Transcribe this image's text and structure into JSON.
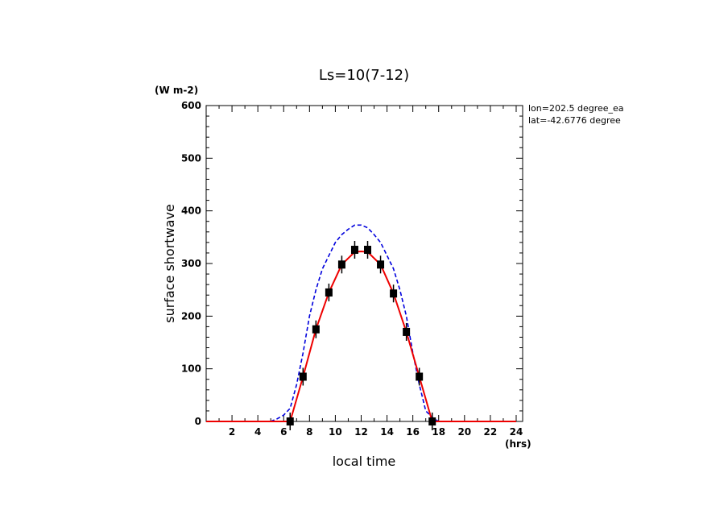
{
  "chart_data": {
    "type": "line",
    "title": "Ls=10(7-12)",
    "ylabel": "surface shortwave",
    "yunit": "(W m-2)",
    "xlabel": "local time",
    "xunit": "(hrs)",
    "annotations": [
      "lon=202.5 degree_ea",
      "lat=-42.6776 degree"
    ],
    "xlim": [
      0,
      24.5
    ],
    "ylim": [
      0,
      600
    ],
    "x_ticks": [
      2,
      4,
      6,
      8,
      10,
      12,
      14,
      16,
      18,
      20,
      22,
      24
    ],
    "y_ticks": [
      0,
      100,
      200,
      300,
      400,
      500,
      600
    ],
    "grid": false,
    "series": [
      {
        "style": "dashed",
        "color": "#0000dd",
        "x": [
          0,
          1,
          2,
          3,
          4,
          5,
          5.5,
          6,
          6.5,
          7,
          7.5,
          8,
          8.5,
          9,
          9.5,
          10,
          10.5,
          11,
          11.5,
          12,
          12.5,
          13,
          13.5,
          14,
          14.5,
          15,
          15.5,
          16,
          16.5,
          17,
          17.5,
          18,
          19,
          20,
          21,
          22,
          23,
          24
        ],
        "y": [
          0,
          0,
          0,
          0,
          0,
          0,
          5,
          12,
          25,
          70,
          130,
          200,
          250,
          290,
          315,
          340,
          355,
          365,
          373,
          373,
          368,
          355,
          340,
          315,
          290,
          250,
          200,
          130,
          70,
          20,
          8,
          0,
          0,
          0,
          0,
          0,
          0,
          0
        ]
      },
      {
        "style": "solid",
        "color": "#ee0000",
        "x": [
          0,
          1,
          2,
          3,
          4,
          5,
          6,
          6.5,
          7.5,
          8.5,
          9.5,
          10.5,
          11.5,
          12,
          12.5,
          13.5,
          14.5,
          15.5,
          16.5,
          17.5,
          18,
          19,
          20,
          21,
          22,
          23,
          24
        ],
        "y": [
          0,
          0,
          0,
          0,
          0,
          0,
          0,
          0,
          85,
          175,
          245,
          298,
          322,
          323,
          322,
          298,
          243,
          170,
          85,
          0,
          0,
          0,
          0,
          0,
          0,
          0,
          0
        ]
      }
    ],
    "markers": {
      "color": "#000000",
      "x": [
        6.5,
        7.5,
        8.5,
        9.5,
        10.5,
        11.5,
        12.5,
        13.5,
        14.5,
        15.5,
        16.5,
        17.5
      ],
      "y": [
        0,
        85,
        175,
        245,
        298,
        326,
        326,
        298,
        243,
        170,
        85,
        0
      ]
    }
  }
}
